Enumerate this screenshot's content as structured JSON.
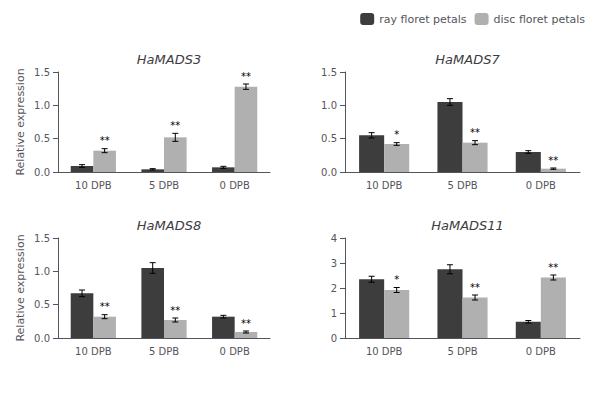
{
  "chart_data": [
    {
      "type": "bar",
      "title": "HaMADS3",
      "ylabel": "Relative expression",
      "categories": [
        "10 DPB",
        "5 DPB",
        "0 DPB"
      ],
      "series": [
        {
          "name": "ray floret petals",
          "color": "#3d3d3d",
          "values": [
            0.09,
            0.04,
            0.07
          ],
          "errors": [
            0.02,
            0.01,
            0.015
          ]
        },
        {
          "name": "disc floret petals",
          "color": "#b0b0b0",
          "values": [
            0.32,
            0.52,
            1.28
          ],
          "errors": [
            0.03,
            0.06,
            0.04
          ],
          "significance": [
            "**",
            "**",
            "**"
          ]
        }
      ],
      "ylim": [
        0,
        1.5
      ],
      "yticks": [
        {
          "value": 0.0,
          "label": "0.0"
        },
        0.5,
        {
          "value": 1.0,
          "label": "1.0"
        },
        1.5
      ],
      "grid": false,
      "legend": "upper right"
    },
    {
      "type": "bar",
      "title": "HaMADS7",
      "categories": [
        "10 DPB",
        "5 DPB",
        "0 DPB"
      ],
      "series": [
        {
          "name": "ray floret petals",
          "color": "#3d3d3d",
          "values": [
            0.55,
            1.05,
            0.3
          ],
          "errors": [
            0.04,
            0.05,
            0.02
          ]
        },
        {
          "name": "disc floret petals",
          "color": "#b0b0b0",
          "values": [
            0.42,
            0.44,
            0.05
          ],
          "errors": [
            0.02,
            0.03,
            0.01
          ],
          "significance": [
            "*",
            "**",
            "**"
          ]
        }
      ],
      "ylim": [
        0,
        1.5
      ],
      "yticks": [
        {
          "value": 0.0,
          "label": "0.0"
        },
        0.5,
        {
          "value": 1.0,
          "label": "1.0"
        },
        1.5
      ],
      "grid": false,
      "legend": "upper right"
    },
    {
      "type": "bar",
      "title": "HaMADS8",
      "ylabel": "Relative expression",
      "categories": [
        "10 DPB",
        "5 DPB",
        "0 DPB"
      ],
      "series": [
        {
          "name": "ray floret petals",
          "color": "#3d3d3d",
          "values": [
            0.67,
            1.05,
            0.32
          ],
          "errors": [
            0.05,
            0.08,
            0.02
          ]
        },
        {
          "name": "disc floret petals",
          "color": "#b0b0b0",
          "values": [
            0.32,
            0.27,
            0.09
          ],
          "errors": [
            0.03,
            0.03,
            0.015
          ],
          "significance": [
            "**",
            "**",
            "**"
          ]
        }
      ],
      "ylim": [
        0,
        1.5
      ],
      "yticks": [
        {
          "value": 0.0,
          "label": "0.0"
        },
        0.5,
        {
          "value": 1.0,
          "label": "1.0"
        },
        1.5
      ],
      "grid": false,
      "legend": "upper right"
    },
    {
      "type": "bar",
      "title": "HaMADS11",
      "categories": [
        "10 DPB",
        "5 DPB",
        "0 DPB"
      ],
      "series": [
        {
          "name": "ray floret petals",
          "color": "#3d3d3d",
          "values": [
            2.35,
            2.75,
            0.65
          ],
          "errors": [
            0.12,
            0.18,
            0.05
          ]
        },
        {
          "name": "disc floret petals",
          "color": "#b0b0b0",
          "values": [
            1.92,
            1.62,
            2.42
          ],
          "errors": [
            0.1,
            0.1,
            0.1
          ],
          "significance": [
            "*",
            "**",
            "**"
          ]
        }
      ],
      "ylim": [
        0,
        4
      ],
      "yticks": [
        0,
        1,
        2,
        3,
        4
      ],
      "grid": false,
      "legend": "upper right"
    }
  ]
}
